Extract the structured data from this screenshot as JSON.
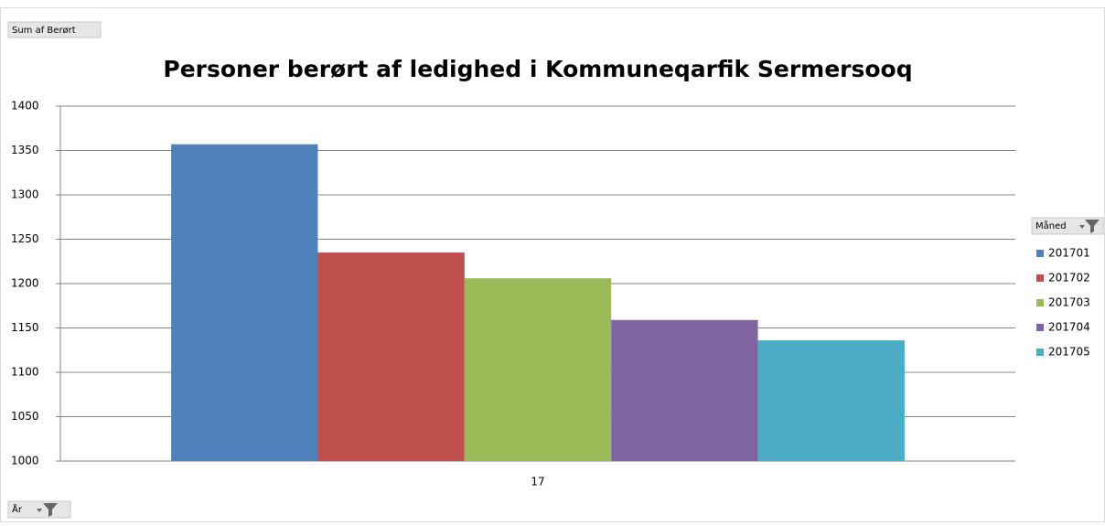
{
  "chart_data": {
    "type": "bar",
    "title": "Personer berørt af ledighed i Kommuneqarfik Sermersooq",
    "value_field": "Sum af Berørt",
    "legend_title": "Måned",
    "axis_field": "År",
    "categories": [
      "17"
    ],
    "series": [
      {
        "name": "201701",
        "color": "#4f81bd",
        "values": [
          1357
        ]
      },
      {
        "name": "201702",
        "color": "#c0504d",
        "values": [
          1235
        ]
      },
      {
        "name": "201703",
        "color": "#9bbb59",
        "values": [
          1206
        ]
      },
      {
        "name": "201704",
        "color": "#8064a2",
        "values": [
          1159
        ]
      },
      {
        "name": "201705",
        "color": "#4bacc6",
        "values": [
          1136
        ]
      }
    ],
    "ylim": [
      1000,
      1400
    ],
    "yticks": [
      1000,
      1050,
      1100,
      1150,
      1200,
      1250,
      1300,
      1350,
      1400
    ],
    "grid": true,
    "legend_position": "right"
  }
}
